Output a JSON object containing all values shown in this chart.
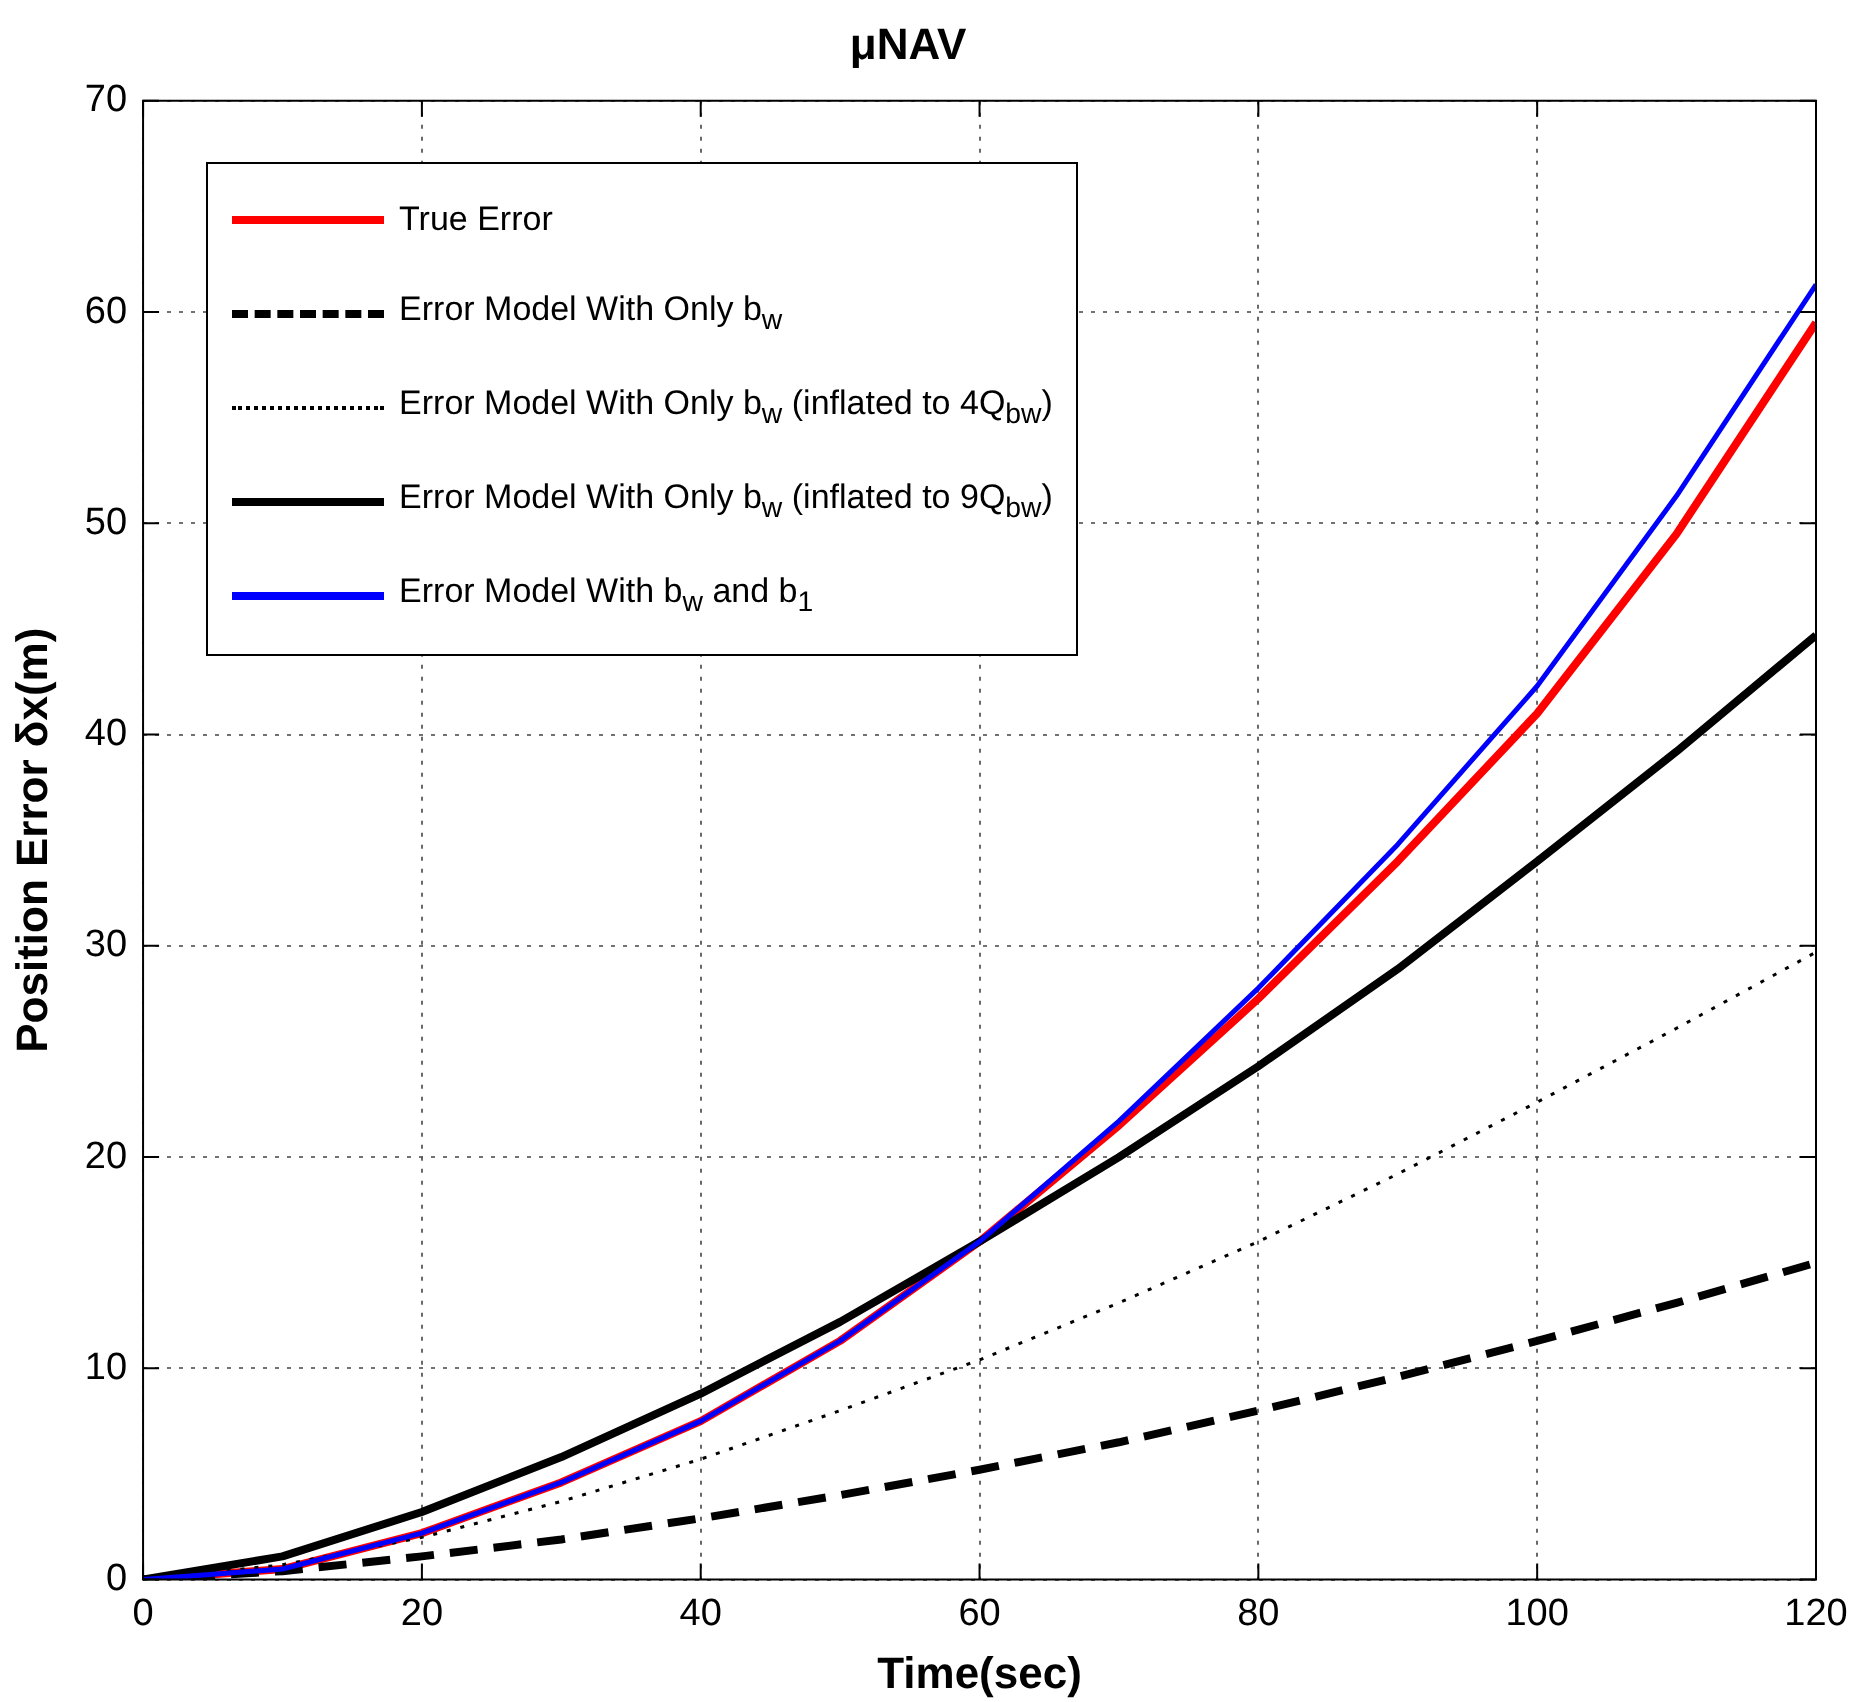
{
  "chart_data": {
    "type": "line",
    "title": "μNAV",
    "xlabel": "Time(sec)",
    "ylabel": "Position Error δx(m)",
    "x": [
      0,
      10,
      20,
      30,
      40,
      50,
      60,
      70,
      80,
      90,
      100,
      110,
      120
    ],
    "series": [
      {
        "name": "True Error",
        "color": "#ff0000",
        "line_style": "solid",
        "values": [
          0,
          0.5,
          2.2,
          4.6,
          7.5,
          11.3,
          16,
          21.5,
          27.5,
          34,
          41,
          49.5,
          59.5
        ]
      },
      {
        "name": "Error Model With Only b$_{w}$",
        "color": "#000000",
        "line_style": "dashed",
        "values": [
          0,
          0.4,
          1.1,
          1.9,
          2.9,
          4,
          5.2,
          6.5,
          8,
          9.6,
          11.3,
          13.1,
          15
        ]
      },
      {
        "name": "Error Model With Only b$_{w}$ (inflated to 4Q$_{b}$$_{w}$)",
        "color": "#000000",
        "line_style": "dotted",
        "values": [
          0,
          0.7,
          2,
          3.7,
          5.7,
          8,
          10.4,
          13.1,
          16,
          19.2,
          22.6,
          26.1,
          29.7
        ]
      },
      {
        "name": "Error Model With Only b$_{w}$ (inflated to 9Q$_{b}$$_{w}$)",
        "color": "#000000",
        "line_style": "solid",
        "values": [
          0,
          1.1,
          3.2,
          5.8,
          8.8,
          12.2,
          16,
          20,
          24.3,
          28.9,
          34,
          39.2,
          44.7
        ]
      },
      {
        "name": "Error Model With b$_{w}$ and b$_{1}$",
        "color": "#0000ff",
        "line_style": "solid",
        "values": [
          0,
          0.5,
          2.2,
          4.6,
          7.5,
          11.3,
          16,
          21.7,
          28,
          34.8,
          42.3,
          51.3,
          61.3
        ]
      }
    ],
    "xlim": [
      0,
      120
    ],
    "xticks": [
      0,
      20,
      40,
      60,
      80,
      100,
      120
    ],
    "ylim": [
      0,
      70
    ],
    "yticks": [
      0,
      10,
      20,
      30,
      40,
      50,
      60,
      70
    ],
    "grid": true,
    "legend": "top left",
    "marker": "none"
  }
}
